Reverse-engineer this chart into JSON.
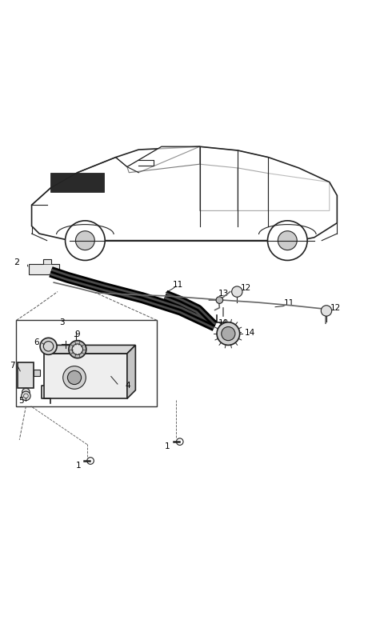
{
  "bg_color": "#ffffff",
  "fig_width": 4.8,
  "fig_height": 7.75,
  "dpi": 100,
  "dark": "#222222",
  "black": "#000000",
  "gray": "#666666",
  "light_gray": "#e8e8e8",
  "mid_gray": "#cccccc",
  "tube_color": "#666666"
}
